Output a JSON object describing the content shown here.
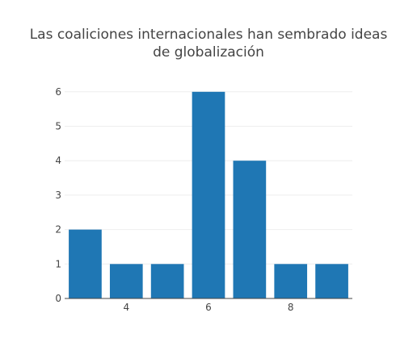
{
  "chart_data": {
    "type": "bar",
    "title_lines": [
      "Las coaliciones internacionales han sembrado ideas",
      "de globalización"
    ],
    "x": [
      3,
      4,
      5,
      6,
      7,
      8,
      9
    ],
    "values": [
      2,
      1,
      1,
      6,
      4,
      1,
      1
    ],
    "xticks": [
      4,
      6,
      8
    ],
    "yticks": [
      0,
      1,
      2,
      3,
      4,
      5,
      6
    ],
    "xlim": [
      2.5,
      9.5
    ],
    "ylim": [
      0,
      6.3
    ],
    "xlabel": "",
    "ylabel": "",
    "grid": true,
    "legend": "none",
    "bar_color": "#1f77b4",
    "grid_color": "#eeeeee",
    "axis_color": "#444444"
  }
}
